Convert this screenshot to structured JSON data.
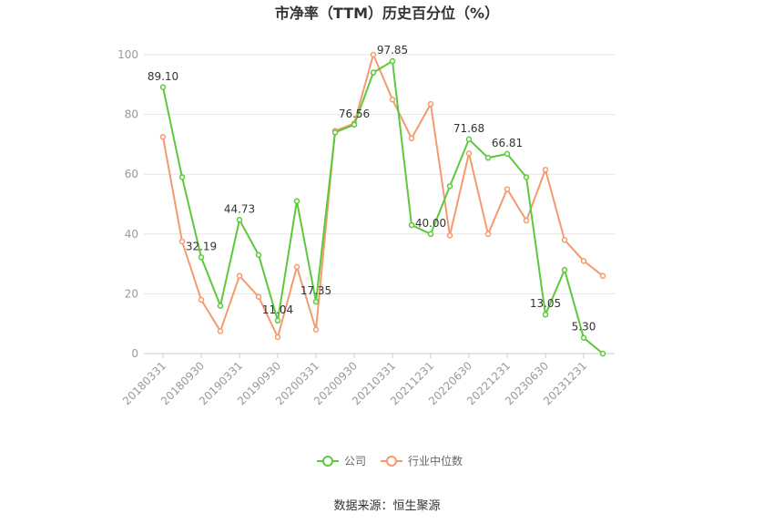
{
  "chart_data": {
    "type": "line",
    "title": "市净率（TTM）历史百分位（%）",
    "source": "数据来源：恒生聚源",
    "categories": [
      "20180331",
      null,
      "20180930",
      null,
      "20190331",
      null,
      "20190930",
      null,
      "20200331",
      null,
      "20200930",
      null,
      "20210331",
      null,
      "20211231",
      null,
      "20220630",
      null,
      "20221231",
      null,
      "20230630",
      null,
      "20231231",
      null
    ],
    "series": [
      {
        "name": "公司",
        "color": "#5cc93a",
        "values": [
          89.1,
          59,
          32.19,
          16,
          44.73,
          33,
          11.04,
          51,
          17.35,
          74,
          76.56,
          94,
          97.85,
          43,
          40.0,
          56,
          71.68,
          65.5,
          66.81,
          59,
          13.05,
          28,
          5.3,
          0
        ],
        "value_labels": [
          "89.10",
          null,
          "32.19",
          null,
          "44.73",
          null,
          "11.04",
          null,
          "17.35",
          null,
          "76.56",
          null,
          "97.85",
          null,
          "40.00",
          null,
          "71.68",
          null,
          "66.81",
          null,
          "13.05",
          null,
          "5.30",
          null
        ]
      },
      {
        "name": "行业中位数",
        "color": "#f59a6e",
        "values": [
          72.5,
          37.5,
          18,
          7.5,
          26,
          19,
          5.5,
          29,
          8,
          74.5,
          77,
          100,
          85,
          72,
          83.5,
          39.5,
          67,
          40,
          55,
          44.5,
          61.5,
          38,
          31,
          26
        ]
      }
    ],
    "ylim": [
      0,
      100
    ],
    "yticks": [
      0,
      20,
      40,
      60,
      80,
      100
    ],
    "grid": true
  }
}
